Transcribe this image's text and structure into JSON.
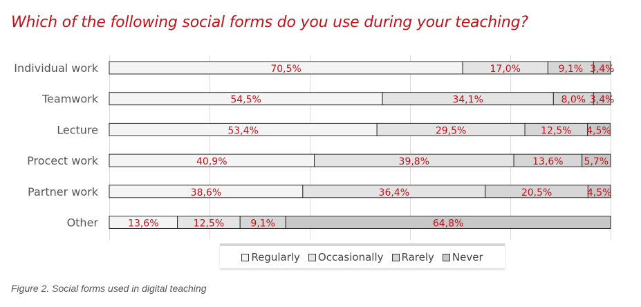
{
  "chart_data": {
    "type": "bar",
    "orientation": "horizontal",
    "stacked": true,
    "title": "Which of the following social forms do you use during your teaching?",
    "categories": [
      "Individual work",
      "Teamwork",
      "Lecture",
      "Procect work",
      "Partner work",
      "Other"
    ],
    "series": [
      {
        "name": "Regularly",
        "color": "#f4f4f4",
        "values": [
          70.5,
          54.5,
          53.4,
          40.9,
          38.6,
          13.6
        ],
        "labels": [
          "70,5%",
          "54,5%",
          "53,4%",
          "40,9%",
          "38,6%",
          "13,6%"
        ]
      },
      {
        "name": "Occasionally",
        "color": "#e4e4e4",
        "values": [
          17.0,
          34.1,
          29.5,
          39.8,
          36.4,
          12.5
        ],
        "labels": [
          "17,0%",
          "34,1%",
          "29,5%",
          "39,8%",
          "36,4%",
          "12,5%"
        ]
      },
      {
        "name": "Rarely",
        "color": "#d6d6d6",
        "values": [
          9.1,
          8.0,
          12.5,
          13.6,
          20.5,
          9.1
        ],
        "labels": [
          "9,1%",
          "8,0%",
          "12,5%",
          "13,6%",
          "20,5%",
          "9,1%"
        ]
      },
      {
        "name": "Never",
        "color": "#c8c8c8",
        "values": [
          3.4,
          3.4,
          4.5,
          5.7,
          4.5,
          64.8
        ],
        "labels": [
          "3,4%",
          "3,4%",
          "4,5%",
          "5,7%",
          "4,5%",
          "64,8%"
        ]
      }
    ],
    "xlim": [
      0,
      100
    ],
    "grid": true,
    "legend_position": "bottom",
    "label_color": "#c0121a"
  },
  "caption": "Figure 2. Social forms used in digital teaching"
}
